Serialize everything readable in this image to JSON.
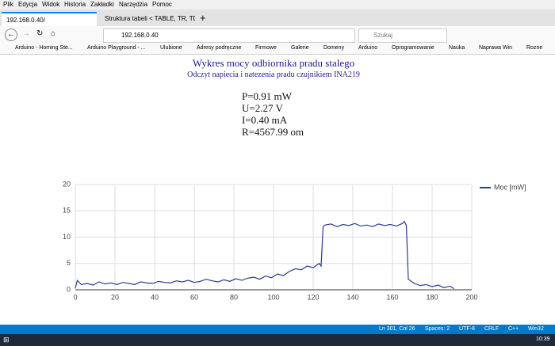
{
  "menu": [
    "Plik",
    "Edycja",
    "Widok",
    "Historia",
    "Zakładki",
    "Narzędzia",
    "Pomoc"
  ],
  "tabs": [
    "192.168.0.40/",
    "Struktura tabeli < TABLE, TR, TD"
  ],
  "address": "192.168.0.40",
  "search": "Szukaj",
  "bookmarks": [
    "Arduino - Homing Ste...",
    "Arduino Playground - ...",
    "Ulubione",
    "Adresy podręczne",
    "Firmowe",
    "Galerie",
    "Domeny",
    "Arduino",
    "Oprogramowanie",
    "Nauka",
    "Naprawa Win",
    "Rozne"
  ],
  "page": {
    "title": "Wykres mocy odbiornika pradu stalego",
    "subtitle": "Odczyt napiecia i natezenia pradu czujnikiem INA219",
    "readings": [
      "P=0.91 mW",
      "U=2.27 V",
      "I=0.40 mA",
      "R=4567.99 om"
    ]
  },
  "chart_data": {
    "type": "line",
    "x": [
      0,
      1,
      3,
      6,
      9,
      12,
      15,
      18,
      21,
      24,
      27,
      30,
      33,
      36,
      39,
      42,
      45,
      48,
      51,
      54,
      57,
      60,
      63,
      66,
      69,
      72,
      75,
      78,
      81,
      84,
      87,
      90,
      93,
      96,
      99,
      102,
      105,
      108,
      111,
      114,
      117,
      120,
      123,
      124,
      125,
      126,
      129,
      132,
      135,
      138,
      141,
      144,
      147,
      150,
      153,
      156,
      159,
      162,
      165,
      166,
      167,
      168,
      171,
      174,
      177,
      180,
      183,
      186,
      189,
      191
    ],
    "series": [
      {
        "name": "Moc [mW]",
        "color": "#2a3b9a",
        "values": [
          0.3,
          1.8,
          1.0,
          1.2,
          0.9,
          1.5,
          1.1,
          1.3,
          1.0,
          1.4,
          1.2,
          1.0,
          1.5,
          1.3,
          1.2,
          1.6,
          1.4,
          1.3,
          1.7,
          1.5,
          1.8,
          1.4,
          1.6,
          2.0,
          1.7,
          1.5,
          1.9,
          1.6,
          2.1,
          1.8,
          2.2,
          2.4,
          2.0,
          2.6,
          2.3,
          3.0,
          2.7,
          3.5,
          4.0,
          3.8,
          4.5,
          4.2,
          5.0,
          4.5,
          12.0,
          12.3,
          12.5,
          12.0,
          12.4,
          12.2,
          12.6,
          12.1,
          12.3,
          12.0,
          12.5,
          12.2,
          12.4,
          12.1,
          12.6,
          13.0,
          12.2,
          2.0,
          1.2,
          0.8,
          1.0,
          0.6,
          0.9,
          0.4,
          0.7,
          0.2
        ]
      }
    ],
    "xlim": [
      0,
      200
    ],
    "xticks": [
      0,
      20,
      40,
      60,
      80,
      100,
      120,
      140,
      160,
      180,
      200
    ],
    "ylim": [
      0,
      20
    ],
    "yticks": [
      0,
      5,
      10,
      15,
      20
    ],
    "grid": true,
    "legend": "right"
  },
  "status": [
    "Ln 301, Col 26",
    "Spaces: 2",
    "UTF-8",
    "CRLF",
    "C++",
    "Win32"
  ],
  "clock": "10:39"
}
